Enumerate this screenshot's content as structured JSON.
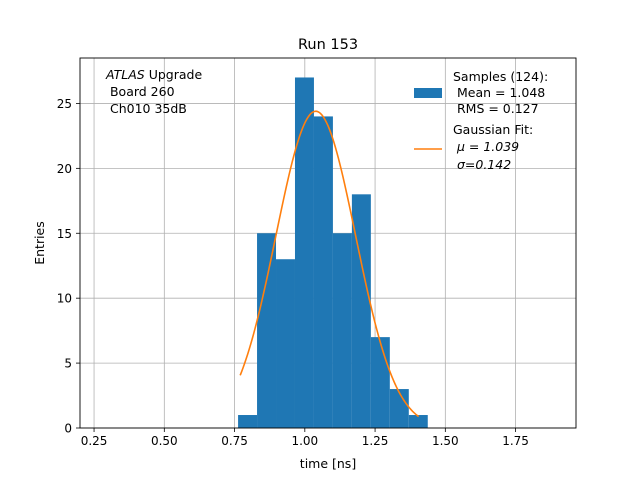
{
  "chart_data": {
    "type": "bar",
    "title": "Run 153",
    "xlabel": "time [ns]",
    "ylabel": "Entries",
    "xlim": [
      0.2,
      1.965
    ],
    "ylim": [
      0,
      28.5
    ],
    "xticks": [
      0.25,
      0.5,
      0.75,
      1.0,
      1.25,
      1.5,
      1.75
    ],
    "xtick_labels": [
      "0.25",
      "0.50",
      "0.75",
      "1.00",
      "1.25",
      "1.50",
      "1.75"
    ],
    "yticks": [
      0,
      5,
      10,
      15,
      20,
      25
    ],
    "ytick_labels": [
      "0",
      "5",
      "10",
      "15",
      "20",
      "25"
    ],
    "grid": true,
    "histogram": {
      "name": "Samples (124):",
      "color": "#1f77b4",
      "bin_edges": [
        0.7625,
        0.83,
        0.8975,
        0.965,
        1.0325,
        1.1,
        1.1675,
        1.235,
        1.3025,
        1.37,
        1.4375
      ],
      "counts": [
        1,
        15,
        13,
        27,
        24,
        15,
        18,
        7,
        3,
        1
      ]
    },
    "fit": {
      "name": "Gaussian Fit:",
      "color": "#ff7f0e",
      "mu": 1.039,
      "sigma": 0.142,
      "amplitude": 24.4,
      "x_range": [
        0.77,
        1.405
      ]
    },
    "legend": {
      "position": "upper right",
      "entries": [
        {
          "kind": "patch",
          "lines": [
            "Samples (124):",
            " Mean = 1.048",
            " RMS = 0.127"
          ]
        },
        {
          "kind": "line",
          "lines": [
            "Gaussian Fit:",
            " μ = 1.039",
            " σ=0.142"
          ]
        }
      ]
    },
    "annotation": {
      "italic": "ATLAS",
      "rest": " Upgrade",
      "lines": [
        " Board 260",
        " Ch010 35dB"
      ]
    }
  }
}
